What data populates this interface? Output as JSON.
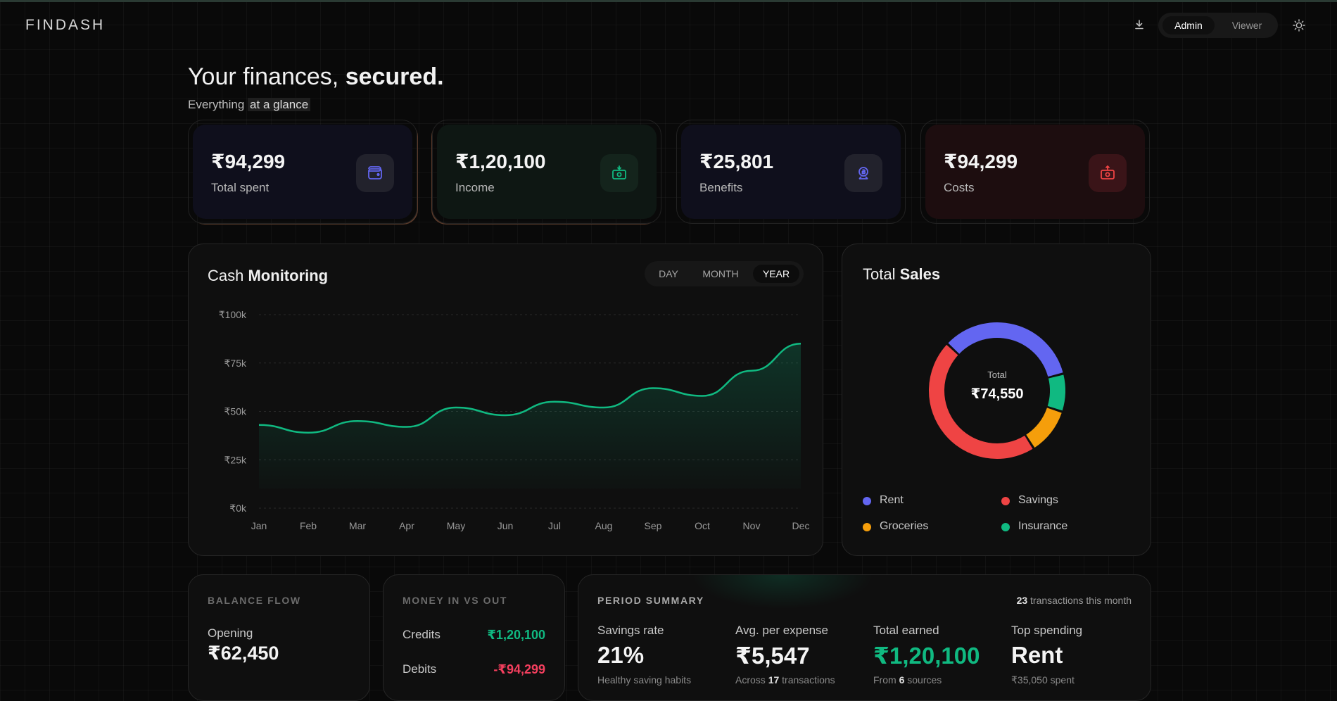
{
  "app": {
    "logo_part1": "FIN",
    "logo_part2": "DASH",
    "roles": [
      "Admin",
      "Viewer"
    ],
    "active_role": "Admin"
  },
  "header": {
    "title_regular": "Your finances, ",
    "title_bold": "secured.",
    "subtitle_start": "Everything ",
    "subtitle_highlight": "at a glance"
  },
  "kpis": [
    {
      "value": "₹94,299",
      "label": "Total spent",
      "icon": "wallet-icon",
      "color": "#6366f1"
    },
    {
      "value": "₹1,20,100",
      "label": "Income",
      "icon": "money-in-icon",
      "color": "#10b981"
    },
    {
      "value": "₹25,801",
      "label": "Benefits",
      "icon": "coin-icon",
      "color": "#6366f1"
    },
    {
      "value": "₹94,299",
      "label": "Costs",
      "icon": "money-out-icon",
      "color": "#ef4444"
    }
  ],
  "cash_monitoring": {
    "title_regular": "Cash ",
    "title_bold": "Monitoring",
    "periods": [
      "DAY",
      "MONTH",
      "YEAR"
    ],
    "active_period": "YEAR"
  },
  "chart_data": {
    "type": "area",
    "x": [
      "Jan",
      "Feb",
      "Mar",
      "Apr",
      "May",
      "Jun",
      "Jul",
      "Aug",
      "Sep",
      "Oct",
      "Nov",
      "Dec"
    ],
    "values": [
      43,
      39,
      45,
      42,
      52,
      48,
      55,
      52,
      62,
      58,
      71,
      85
    ],
    "ylim": [
      0,
      100
    ],
    "y_ticks": [
      "₹0k",
      "₹25k",
      "₹50k",
      "₹75k",
      "₹100k"
    ],
    "y_tick_values": [
      0,
      25,
      50,
      75,
      100
    ],
    "grid": true,
    "color": "#10b981"
  },
  "total_sales": {
    "title_regular": "Total ",
    "title_bold": "Sales",
    "center_label": "Total",
    "center_value": "₹74,550",
    "legend": [
      {
        "name": "Rent",
        "color": "#6366f1"
      },
      {
        "name": "Savings",
        "color": "#ef4444"
      },
      {
        "name": "Groceries",
        "color": "#f59e0b"
      },
      {
        "name": "Insurance",
        "color": "#10b981"
      }
    ],
    "donut_shares": {
      "Rent": 0.34,
      "Insurance": 0.09,
      "Groceries": 0.11,
      "Savings": 0.46
    }
  },
  "balance_flow": {
    "heading": "BALANCE FLOW",
    "opening_label": "Opening",
    "opening_value": "₹62,450"
  },
  "money_in_out": {
    "heading": "MONEY IN VS OUT",
    "credits_label": "Credits",
    "credits_value": "₹1,20,100",
    "debits_label": "Debits",
    "debits_value": "-₹94,299"
  },
  "period_summary": {
    "heading": "PERIOD SUMMARY",
    "tx_count": "23",
    "tx_text": " transactions this month",
    "items": [
      {
        "label": "Savings rate",
        "value": "21%",
        "note_pre": "Healthy saving habits",
        "note_bold": "",
        "note_post": ""
      },
      {
        "label": "Avg. per expense",
        "value": "₹5,547",
        "note_pre": "Across ",
        "note_bold": "17",
        "note_post": " transactions"
      },
      {
        "label": "Total earned",
        "value": "₹1,20,100",
        "note_pre": "From ",
        "note_bold": "6",
        "note_post": " sources"
      },
      {
        "label": "Top spending",
        "value": "Rent",
        "note_pre": "₹35,050 spent",
        "note_bold": "",
        "note_post": ""
      }
    ]
  }
}
